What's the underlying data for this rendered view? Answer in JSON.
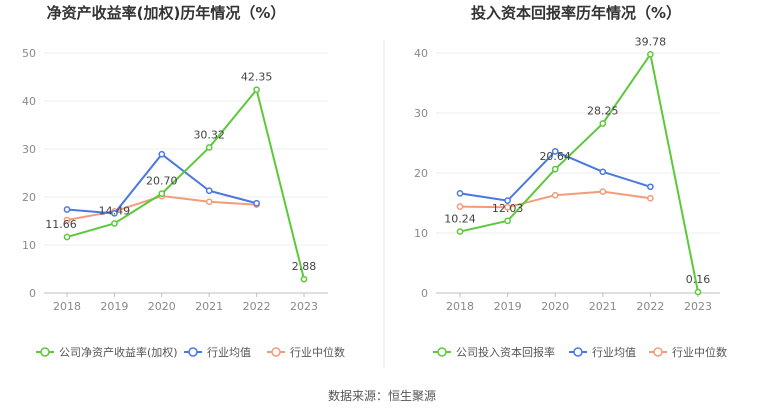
{
  "source": "数据来源：恒生聚源",
  "chart_data": [
    {
      "type": "line",
      "title": "净资产收益率(加权)历年情况（%）",
      "categories": [
        "2018",
        "2019",
        "2020",
        "2021",
        "2022",
        "2023"
      ],
      "ylim": [
        0,
        50
      ],
      "yticks": [
        "0",
        "10",
        "20",
        "30",
        "40",
        "50"
      ],
      "grid": true,
      "series": [
        {
          "name": "公司净资产收益率(加权)",
          "color": "#5cc83a",
          "values": [
            11.66,
            14.49,
            20.7,
            30.32,
            42.35,
            2.88
          ],
          "labels": [
            "11.66",
            "14.49",
            "20.70",
            "30.32",
            "42.35",
            "2.88"
          ]
        },
        {
          "name": "行业均值",
          "color": "#4a78e0",
          "values": [
            17.4,
            16.6,
            28.9,
            21.3,
            18.7,
            null
          ]
        },
        {
          "name": "行业中位数",
          "color": "#f29c7b",
          "values": [
            15.2,
            17.0,
            20.2,
            19.0,
            18.4,
            null
          ]
        }
      ]
    },
    {
      "type": "line",
      "title": "投入资本回报率历年情况（%）",
      "categories": [
        "2018",
        "2019",
        "2020",
        "2021",
        "2022",
        "2023"
      ],
      "ylim": [
        0,
        40
      ],
      "yticks": [
        "0",
        "10",
        "20",
        "30",
        "40"
      ],
      "grid": true,
      "series": [
        {
          "name": "公司投入资本回报率",
          "color": "#5cc83a",
          "values": [
            10.24,
            12.03,
            20.64,
            28.25,
            39.78,
            0.16
          ],
          "labels": [
            "10.24",
            "12.03",
            "20.64",
            "28.25",
            "39.78",
            "0.16"
          ]
        },
        {
          "name": "行业均值",
          "color": "#4a78e0",
          "values": [
            16.6,
            15.4,
            23.6,
            20.2,
            17.7,
            null
          ]
        },
        {
          "name": "行业中位数",
          "color": "#f29c7b",
          "values": [
            14.4,
            14.3,
            16.3,
            16.9,
            15.8,
            null
          ]
        }
      ]
    }
  ]
}
